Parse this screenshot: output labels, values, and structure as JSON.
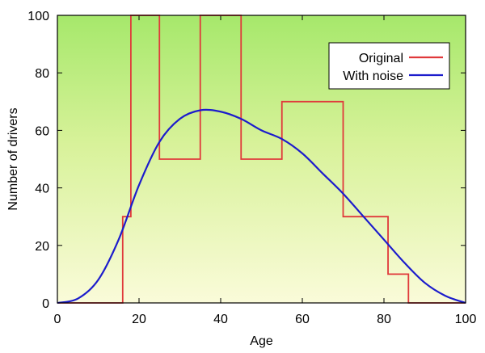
{
  "chart_data": {
    "type": "line",
    "title": "",
    "xlabel": "Age",
    "ylabel": "Number of drivers",
    "xlim": [
      0,
      100
    ],
    "ylim": [
      0,
      100
    ],
    "x_ticks": [
      0,
      20,
      40,
      60,
      80,
      100
    ],
    "y_ticks": [
      0,
      20,
      40,
      60,
      80,
      100
    ],
    "grid": false,
    "legend_position": "top-right",
    "background": "gradient green (top) to light yellow (bottom)",
    "series": [
      {
        "name": "Original",
        "color": "#e0393b",
        "style": "step",
        "points": [
          [
            0,
            0
          ],
          [
            16,
            0
          ],
          [
            16,
            30
          ],
          [
            18,
            30
          ],
          [
            18,
            100
          ],
          [
            25,
            100
          ],
          [
            25,
            50
          ],
          [
            35,
            50
          ],
          [
            35,
            100
          ],
          [
            45,
            100
          ],
          [
            45,
            50
          ],
          [
            55,
            50
          ],
          [
            55,
            70
          ],
          [
            70,
            70
          ],
          [
            70,
            30
          ],
          [
            81,
            30
          ],
          [
            81,
            10
          ],
          [
            86,
            10
          ],
          [
            86,
            0
          ],
          [
            100,
            0
          ]
        ]
      },
      {
        "name": "With noise",
        "color": "#1c1ccc",
        "style": "smooth",
        "points": [
          [
            0,
            0
          ],
          [
            5,
            1.5
          ],
          [
            10,
            8
          ],
          [
            15,
            22
          ],
          [
            20,
            41
          ],
          [
            25,
            56
          ],
          [
            30,
            64
          ],
          [
            35,
            67
          ],
          [
            40,
            66.5
          ],
          [
            45,
            64
          ],
          [
            50,
            60
          ],
          [
            55,
            57
          ],
          [
            60,
            52
          ],
          [
            65,
            45
          ],
          [
            70,
            38
          ],
          [
            75,
            30
          ],
          [
            80,
            22
          ],
          [
            85,
            14
          ],
          [
            90,
            7
          ],
          [
            95,
            2.5
          ],
          [
            100,
            0
          ]
        ]
      }
    ]
  }
}
